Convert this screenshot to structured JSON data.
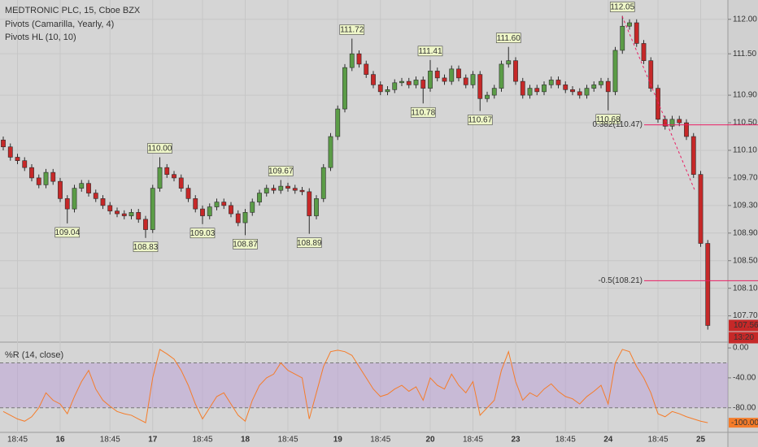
{
  "chart_data": [
    {
      "type": "candlestick",
      "title": "MEDTRONIC PLC, 15, Cboe BZX",
      "subtitles": [
        "Pivots (Camarilla, Yearly, 4)",
        "Pivots HL (10, 10)"
      ],
      "categories": [
        null,
        null,
        "18:45",
        null,
        null,
        null,
        null,
        null,
        "16",
        null,
        null,
        null,
        null,
        null,
        null,
        "18:45",
        null,
        null,
        null,
        null,
        null,
        "17",
        null,
        null,
        null,
        null,
        null,
        null,
        "18:45",
        null,
        null,
        null,
        null,
        null,
        "18",
        null,
        null,
        null,
        null,
        null,
        "18:45",
        null,
        null,
        null,
        null,
        null,
        null,
        "19",
        null,
        null,
        null,
        null,
        null,
        "18:45",
        null,
        null,
        null,
        null,
        null,
        null,
        "20",
        null,
        null,
        null,
        null,
        null,
        "18:45",
        null,
        null,
        null,
        null,
        null,
        "23",
        null,
        null,
        null,
        null,
        null,
        null,
        "18:45",
        null,
        null,
        null,
        null,
        null,
        "24",
        null,
        null,
        null,
        null,
        null,
        null,
        "18:45",
        null,
        null,
        null,
        null,
        null,
        "25",
        null
      ],
      "open": [
        110.25,
        110.15,
        110.0,
        109.95,
        109.85,
        109.7,
        109.6,
        109.78,
        109.65,
        109.4,
        109.25,
        109.55,
        109.62,
        109.48,
        109.4,
        109.3,
        109.22,
        109.18,
        109.15,
        109.2,
        109.1,
        108.95,
        109.55,
        109.85,
        109.75,
        109.7,
        109.55,
        109.4,
        109.25,
        109.15,
        109.28,
        109.35,
        109.3,
        109.18,
        109.05,
        109.2,
        109.35,
        109.48,
        109.55,
        109.52,
        109.58,
        109.55,
        109.52,
        109.5,
        109.15,
        109.4,
        109.85,
        110.3,
        110.7,
        111.3,
        111.5,
        111.35,
        111.2,
        111.05,
        110.95,
        110.98,
        111.08,
        111.1,
        111.05,
        111.12,
        111.0,
        111.25,
        111.15,
        111.1,
        111.28,
        111.15,
        111.05,
        111.2,
        110.85,
        110.9,
        111.0,
        111.35,
        111.4,
        111.1,
        110.9,
        111.0,
        110.95,
        111.05,
        111.12,
        111.05,
        110.98,
        110.95,
        110.9,
        111.0,
        111.05,
        111.1,
        110.95,
        111.55,
        111.9,
        111.95,
        111.65,
        111.4,
        111.0,
        110.55,
        110.45,
        110.55,
        110.5,
        110.3,
        109.75,
        108.75
      ],
      "high": [
        110.3,
        110.2,
        110.05,
        110.0,
        109.9,
        109.75,
        109.83,
        109.83,
        109.7,
        109.45,
        109.6,
        109.67,
        109.67,
        109.53,
        109.45,
        109.35,
        109.27,
        109.23,
        109.25,
        109.25,
        109.15,
        109.6,
        110.0,
        109.9,
        109.8,
        109.75,
        109.6,
        109.45,
        109.3,
        109.33,
        109.4,
        109.4,
        109.35,
        109.23,
        109.25,
        109.4,
        109.53,
        109.6,
        109.6,
        109.67,
        109.63,
        109.6,
        109.57,
        109.55,
        109.45,
        109.9,
        110.35,
        110.75,
        111.35,
        111.72,
        111.55,
        111.4,
        111.25,
        111.1,
        111.03,
        111.13,
        111.15,
        111.15,
        111.17,
        111.17,
        111.41,
        111.3,
        111.2,
        111.33,
        111.33,
        111.2,
        111.25,
        111.25,
        110.95,
        111.05,
        111.4,
        111.6,
        111.45,
        111.15,
        111.05,
        111.05,
        111.1,
        111.17,
        111.17,
        111.1,
        111.03,
        111.0,
        111.05,
        111.1,
        111.15,
        111.15,
        111.6,
        112.05,
        112.0,
        112.0,
        111.7,
        111.45,
        111.05,
        110.6,
        110.6,
        110.6,
        110.55,
        110.35,
        109.8,
        108.8
      ],
      "low": [
        110.1,
        109.95,
        109.9,
        109.8,
        109.65,
        109.55,
        109.55,
        109.6,
        109.35,
        109.04,
        109.2,
        109.5,
        109.43,
        109.35,
        109.25,
        109.17,
        109.13,
        109.1,
        109.1,
        109.05,
        108.83,
        108.9,
        109.5,
        109.7,
        109.65,
        109.5,
        109.35,
        109.2,
        109.03,
        109.1,
        109.23,
        109.25,
        109.13,
        109.0,
        108.87,
        109.15,
        109.3,
        109.43,
        109.47,
        109.47,
        109.5,
        109.47,
        109.45,
        108.89,
        109.1,
        109.35,
        109.8,
        110.25,
        110.65,
        111.25,
        111.3,
        111.15,
        111.0,
        110.9,
        110.9,
        110.93,
        111.03,
        111.0,
        111.0,
        110.78,
        110.95,
        111.1,
        111.05,
        111.05,
        111.1,
        111.0,
        111.0,
        110.67,
        110.8,
        110.85,
        110.95,
        111.3,
        111.05,
        110.85,
        110.85,
        110.9,
        110.9,
        111.0,
        111.0,
        110.93,
        110.9,
        110.85,
        110.85,
        110.95,
        111.0,
        110.68,
        110.9,
        111.5,
        111.85,
        111.6,
        111.35,
        110.95,
        110.5,
        110.4,
        110.4,
        110.45,
        110.25,
        109.7,
        108.7,
        107.5
      ],
      "close": [
        110.15,
        110.0,
        109.95,
        109.85,
        109.7,
        109.6,
        109.78,
        109.65,
        109.4,
        109.25,
        109.55,
        109.62,
        109.48,
        109.4,
        109.3,
        109.22,
        109.18,
        109.15,
        109.2,
        109.1,
        108.95,
        109.55,
        109.85,
        109.75,
        109.7,
        109.55,
        109.4,
        109.25,
        109.15,
        109.28,
        109.35,
        109.3,
        109.18,
        109.05,
        109.2,
        109.35,
        109.48,
        109.55,
        109.52,
        109.58,
        109.55,
        109.52,
        109.5,
        109.15,
        109.4,
        109.85,
        110.3,
        110.7,
        111.3,
        111.5,
        111.35,
        111.2,
        111.05,
        110.95,
        110.98,
        111.08,
        111.1,
        111.05,
        111.12,
        111.0,
        111.25,
        111.15,
        111.1,
        111.28,
        111.15,
        111.05,
        111.2,
        110.85,
        110.9,
        111.0,
        111.35,
        111.4,
        111.1,
        110.9,
        111.0,
        110.95,
        111.05,
        111.12,
        111.05,
        110.98,
        110.95,
        110.9,
        111.0,
        111.05,
        111.1,
        110.95,
        111.55,
        111.9,
        111.95,
        111.65,
        111.4,
        111.0,
        110.55,
        110.45,
        110.55,
        110.5,
        110.3,
        109.75,
        108.75,
        107.56
      ],
      "high_labels": [
        null,
        null,
        null,
        null,
        null,
        null,
        null,
        null,
        null,
        null,
        null,
        null,
        null,
        null,
        null,
        null,
        null,
        null,
        null,
        null,
        null,
        null,
        "110.00",
        null,
        null,
        null,
        null,
        null,
        null,
        null,
        null,
        null,
        null,
        null,
        null,
        null,
        null,
        null,
        null,
        "109.67",
        null,
        null,
        null,
        null,
        null,
        null,
        null,
        null,
        null,
        "111.72",
        null,
        null,
        null,
        null,
        null,
        null,
        null,
        null,
        null,
        null,
        "111.41",
        null,
        null,
        null,
        null,
        null,
        null,
        null,
        null,
        null,
        null,
        "111.60",
        null,
        null,
        null,
        null,
        null,
        null,
        null,
        null,
        null,
        null,
        null,
        null,
        null,
        null,
        null,
        "112.05",
        null,
        null,
        null,
        null,
        null,
        null,
        null,
        null,
        null,
        null,
        null,
        null
      ],
      "low_labels": [
        null,
        null,
        null,
        null,
        null,
        null,
        null,
        null,
        null,
        "109.04",
        null,
        null,
        null,
        null,
        null,
        null,
        null,
        null,
        null,
        null,
        "108.83",
        null,
        null,
        null,
        null,
        null,
        null,
        null,
        "109.03",
        null,
        null,
        null,
        null,
        null,
        "108.87",
        null,
        null,
        null,
        null,
        null,
        null,
        null,
        null,
        "108.89",
        null,
        null,
        null,
        null,
        null,
        null,
        null,
        null,
        null,
        null,
        null,
        null,
        null,
        null,
        null,
        "110.78",
        null,
        null,
        null,
        null,
        null,
        null,
        null,
        "110.67",
        null,
        null,
        null,
        null,
        null,
        null,
        null,
        null,
        null,
        null,
        null,
        null,
        null,
        null,
        null,
        null,
        null,
        "110.68",
        null,
        null,
        null,
        null,
        null,
        null,
        null,
        null,
        null,
        null,
        null,
        null,
        null,
        null
      ],
      "levels": [
        {
          "label": "0.382(110.47)",
          "value": 110.47
        },
        {
          "label": "-0.5(108.21)",
          "value": 108.21
        }
      ],
      "level_color": "#e91e63",
      "ylim": [
        107.33,
        112.28
      ],
      "yticks": [
        {
          "value": 112.0,
          "label": "112.00"
        },
        {
          "value": 111.5,
          "label": "111.50"
        },
        {
          "value": 110.9,
          "label": "110.90"
        },
        {
          "value": 110.5,
          "label": "110.50"
        },
        {
          "value": 110.1,
          "label": "110.10"
        },
        {
          "value": 109.7,
          "label": "109.70"
        },
        {
          "value": 109.3,
          "label": "109.30"
        },
        {
          "value": 108.9,
          "label": "108.90"
        },
        {
          "value": 108.5,
          "label": "108.50"
        },
        {
          "value": 108.1,
          "label": "108.10"
        },
        {
          "value": 107.7,
          "label": "107.70"
        }
      ],
      "up_color": "#5b9c47",
      "down_color": "#c62828",
      "countdown": "13:20",
      "grid": true
    },
    {
      "type": "line",
      "title": "%R (14, close)",
      "values": [
        -85,
        -90,
        -95,
        -98,
        -92,
        -80,
        -60,
        -70,
        -75,
        -88,
        -65,
        -45,
        -30,
        -55,
        -70,
        -78,
        -85,
        -88,
        -90,
        -95,
        -100,
        -40,
        -2,
        -8,
        -15,
        -30,
        -50,
        -75,
        -95,
        -80,
        -65,
        -60,
        -75,
        -90,
        -98,
        -70,
        -50,
        -40,
        -35,
        -20,
        -30,
        -35,
        -40,
        -95,
        -60,
        -25,
        -5,
        -3,
        -5,
        -10,
        -25,
        -40,
        -55,
        -65,
        -62,
        -55,
        -50,
        -58,
        -52,
        -70,
        -40,
        -50,
        -55,
        -35,
        -50,
        -60,
        -45,
        -90,
        -80,
        -70,
        -30,
        -5,
        -45,
        -70,
        -60,
        -65,
        -55,
        -48,
        -58,
        -65,
        -68,
        -75,
        -65,
        -58,
        -50,
        -75,
        -20,
        -2,
        -5,
        -25,
        -40,
        -60,
        -88,
        -92,
        -85,
        -88,
        -92,
        -95,
        -98,
        -100
      ],
      "last_value_label": "-100.00",
      "color": "#f57c2a",
      "ylim": [
        -112.9,
        7.7
      ],
      "yticks": [
        {
          "value": 0,
          "label": "0.00"
        },
        {
          "value": -40,
          "label": "-40.00"
        },
        {
          "value": -80,
          "label": "-80.00"
        }
      ],
      "bands": [
        -20,
        -80
      ],
      "band_color": "#b79ad6"
    }
  ]
}
